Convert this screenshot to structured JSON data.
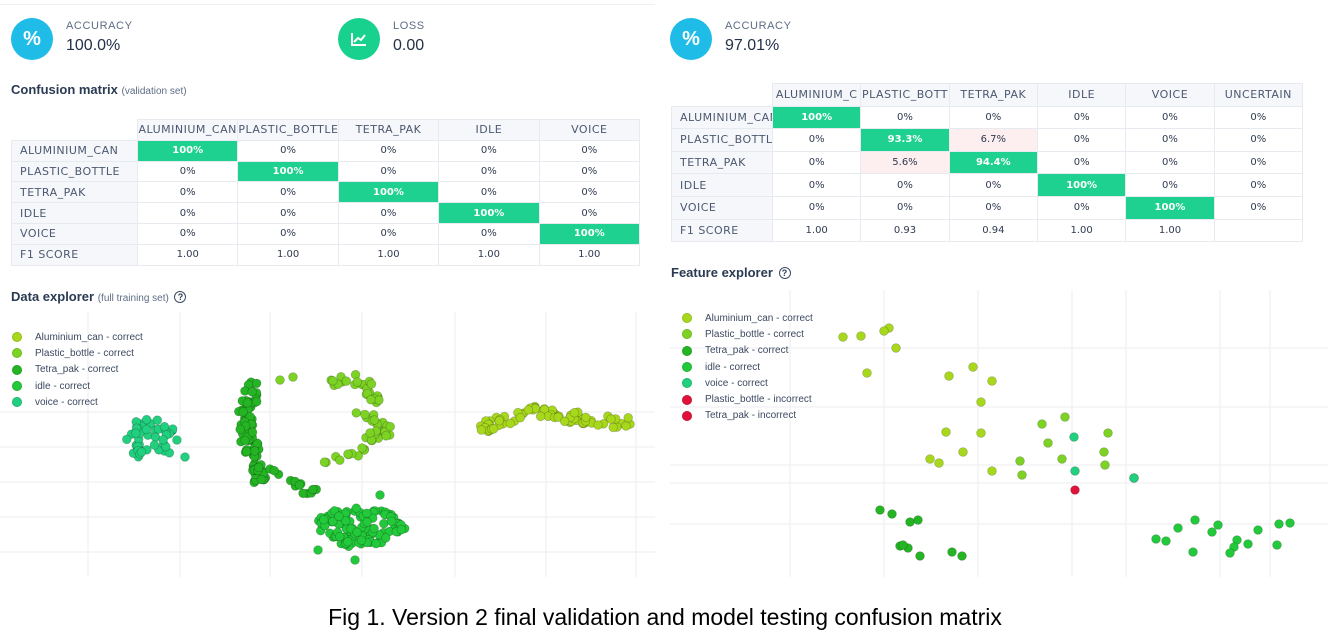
{
  "left": {
    "metrics": [
      {
        "label": "ACCURACY",
        "value": "100.0%",
        "icon": "percent-icon",
        "glyph": "%"
      },
      {
        "label": "LOSS",
        "value": "0.00",
        "icon": "trend-chart-icon",
        "glyph": "📈"
      }
    ],
    "confusion": {
      "title": "Confusion matrix",
      "subtitle": "(validation set)",
      "columns": [
        "ALUMINIUM_CAN",
        "PLASTIC_BOTTLE",
        "TETRA_PAK",
        "IDLE",
        "VOICE"
      ],
      "rows": [
        {
          "label": "ALUMINIUM_CAN",
          "cells": [
            "100%",
            "0%",
            "0%",
            "0%",
            "0%"
          ],
          "hi": [
            0
          ]
        },
        {
          "label": "PLASTIC_BOTTLE",
          "cells": [
            "0%",
            "100%",
            "0%",
            "0%",
            "0%"
          ],
          "hi": [
            1
          ]
        },
        {
          "label": "TETRA_PAK",
          "cells": [
            "0%",
            "0%",
            "100%",
            "0%",
            "0%"
          ],
          "hi": [
            2
          ]
        },
        {
          "label": "IDLE",
          "cells": [
            "0%",
            "0%",
            "0%",
            "100%",
            "0%"
          ],
          "hi": [
            3
          ]
        },
        {
          "label": "VOICE",
          "cells": [
            "0%",
            "0%",
            "0%",
            "0%",
            "100%"
          ],
          "hi": [
            4
          ]
        },
        {
          "label": "F1 SCORE",
          "cells": [
            "1.00",
            "1.00",
            "1.00",
            "1.00",
            "1.00"
          ],
          "hi": []
        }
      ]
    },
    "explorer": {
      "title": "Data explorer",
      "subtitle": "(full training set)",
      "legend": [
        {
          "label": "Aluminium_can - correct",
          "color": "#a8d81c"
        },
        {
          "label": "Plastic_bottle - correct",
          "color": "#7dd324"
        },
        {
          "label": "Tetra_pak - correct",
          "color": "#25b524"
        },
        {
          "label": "idle - correct",
          "color": "#22c93a"
        },
        {
          "label": "voice - correct",
          "color": "#21d07e"
        }
      ]
    }
  },
  "right": {
    "metrics": [
      {
        "label": "ACCURACY",
        "value": "97.01%",
        "icon": "percent-icon",
        "glyph": "%"
      }
    ],
    "confusion": {
      "columns": [
        "ALUMINIUM_C",
        "PLASTIC_BOTT",
        "TETRA_PAK",
        "IDLE",
        "VOICE",
        "UNCERTAIN"
      ],
      "rows": [
        {
          "label": "ALUMINIUM_CAN",
          "cells": [
            "100%",
            "0%",
            "0%",
            "0%",
            "0%",
            "0%"
          ],
          "hi": [
            0
          ],
          "pink": []
        },
        {
          "label": "PLASTIC_BOTTLE",
          "cells": [
            "0%",
            "93.3%",
            "6.7%",
            "0%",
            "0%",
            "0%"
          ],
          "hi": [
            1
          ],
          "pink": [
            2
          ]
        },
        {
          "label": "TETRA_PAK",
          "cells": [
            "0%",
            "5.6%",
            "94.4%",
            "0%",
            "0%",
            "0%"
          ],
          "hi": [
            2
          ],
          "pink": [
            1
          ]
        },
        {
          "label": "IDLE",
          "cells": [
            "0%",
            "0%",
            "0%",
            "100%",
            "0%",
            "0%"
          ],
          "hi": [
            3
          ],
          "pink": []
        },
        {
          "label": "VOICE",
          "cells": [
            "0%",
            "0%",
            "0%",
            "0%",
            "100%",
            "0%"
          ],
          "hi": [
            4
          ],
          "pink": []
        },
        {
          "label": "F1 SCORE",
          "cells": [
            "1.00",
            "0.93",
            "0.94",
            "1.00",
            "1.00",
            ""
          ],
          "hi": [],
          "pink": []
        }
      ]
    },
    "explorer": {
      "title": "Feature explorer",
      "legend": [
        {
          "label": "Aluminium_can - correct",
          "color": "#a8d81c"
        },
        {
          "label": "Plastic_bottle - correct",
          "color": "#7dd324"
        },
        {
          "label": "Tetra_pak - correct",
          "color": "#25b524"
        },
        {
          "label": "idle - correct",
          "color": "#22c93a"
        },
        {
          "label": "voice - correct",
          "color": "#21d07e"
        },
        {
          "label": "Plastic_bottle - incorrect",
          "color": "#e0123a"
        },
        {
          "label": "Tetra_pak - incorrect",
          "color": "#e0123a"
        }
      ]
    }
  },
  "caption": "Fig 1. Version 2 final validation and model testing confusion matrix"
}
